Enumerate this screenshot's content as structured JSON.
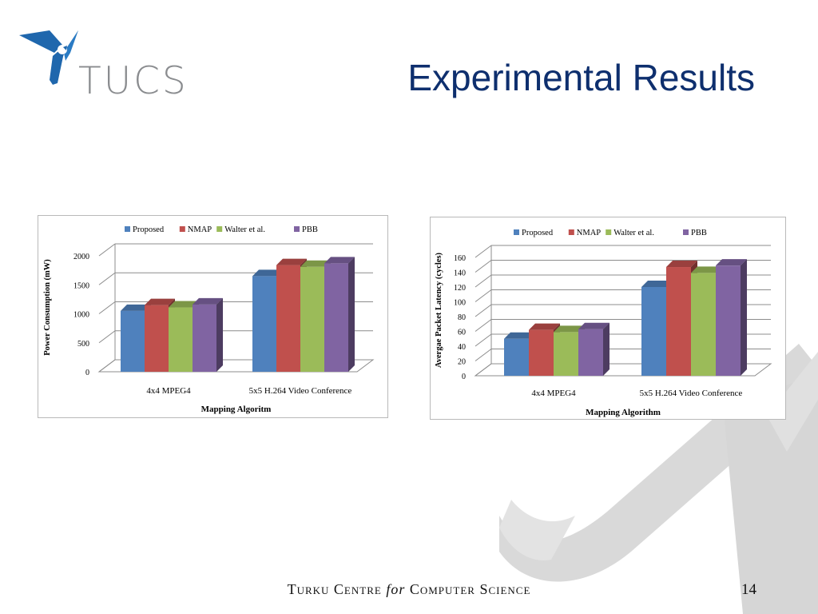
{
  "logo": {
    "text": "TUCS",
    "icon": "tucs-logo-icon"
  },
  "slide": {
    "title": "Experimental Results",
    "page_number": "14"
  },
  "footer": {
    "part1": "Turku Centre ",
    "part2": "for",
    "part3": " Computer Science"
  },
  "colors": {
    "title": "#0e2f6e",
    "proposed": "#4f81bd",
    "nmap": "#c0504d",
    "walter": "#9bbb59",
    "pbb": "#8064a2",
    "watermark": "#d6d6d6",
    "logo_blue": "#1f67ad"
  },
  "chart_data": [
    {
      "type": "bar",
      "style": "3d-clustered",
      "legend_position": "top",
      "grid": true,
      "categories": [
        "4x4 MPEG4",
        "5x5 H.264 Video Conference"
      ],
      "series": [
        {
          "name": "Proposed",
          "values": [
            1050,
            1650
          ]
        },
        {
          "name": "NMAP",
          "values": [
            1150,
            1840
          ]
        },
        {
          "name": "Walter et al.",
          "values": [
            1110,
            1810
          ]
        },
        {
          "name": "PBB",
          "values": [
            1160,
            1870
          ]
        }
      ],
      "ylabel": "Power Consumption (mW)",
      "xlabel": "Mapping Algoritm",
      "ylim": [
        0,
        2000
      ],
      "yticks": [
        0,
        500,
        1000,
        1500,
        2000
      ]
    },
    {
      "type": "bar",
      "style": "3d-clustered",
      "legend_position": "top",
      "grid": true,
      "categories": [
        "4x4 MPEG4",
        "5x5 H.264 Video Conference"
      ],
      "series": [
        {
          "name": "Proposed",
          "values": [
            50,
            120
          ]
        },
        {
          "name": "NMAP",
          "values": [
            62,
            147
          ]
        },
        {
          "name": "Walter et al.",
          "values": [
            59,
            139
          ]
        },
        {
          "name": "PBB",
          "values": [
            63,
            149
          ]
        }
      ],
      "ylabel": "Avergae Packet Latency (cycles)",
      "xlabel": "Mapping Algorithm",
      "ylim": [
        0,
        160
      ],
      "yticks": [
        0,
        20,
        40,
        60,
        80,
        100,
        120,
        140,
        160
      ]
    }
  ]
}
